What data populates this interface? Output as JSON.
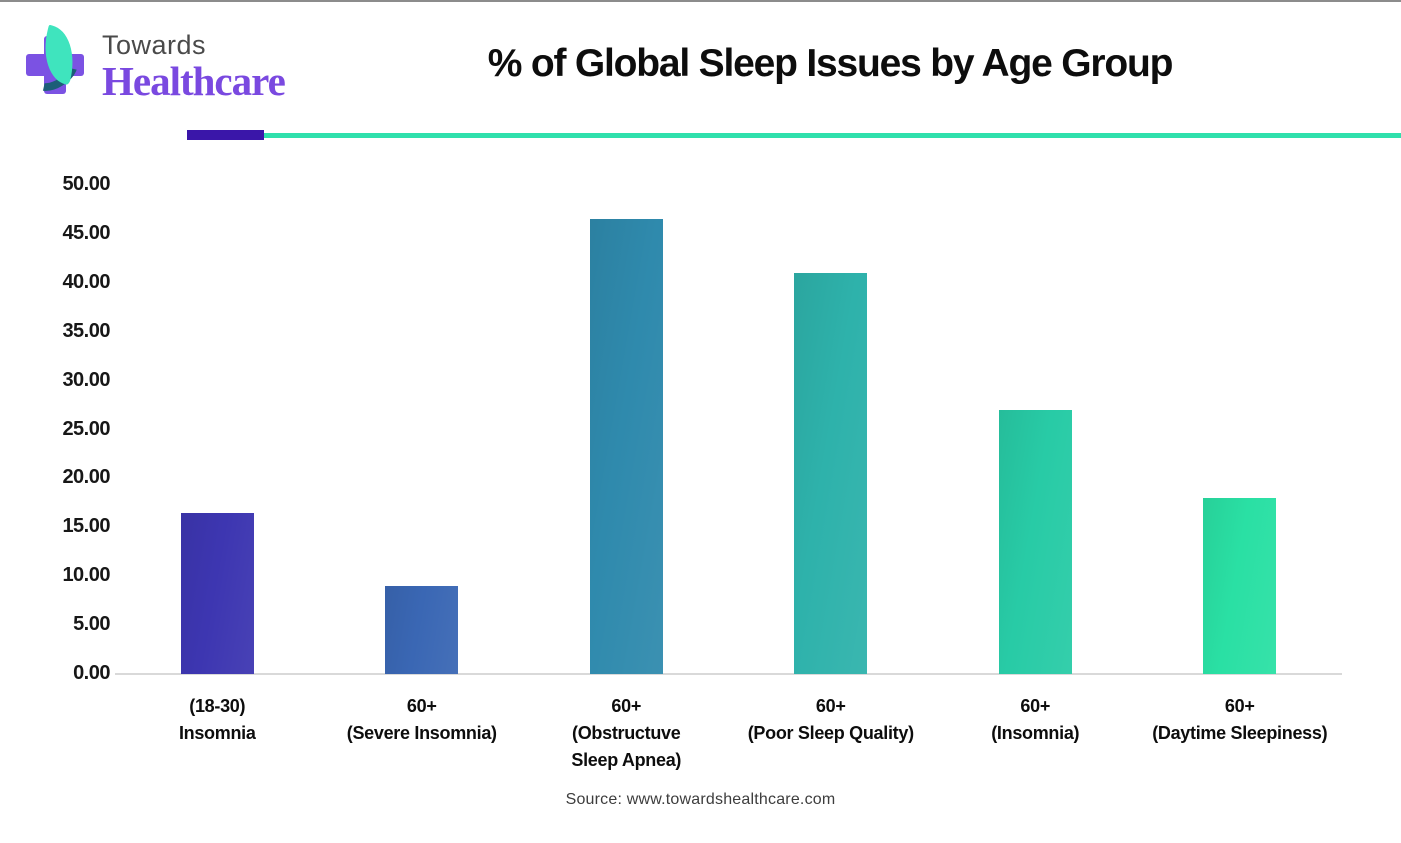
{
  "page": {
    "background": "#ffffff",
    "top_border_color": "#8c8c8c"
  },
  "header": {
    "logo": {
      "line1": "Towards",
      "line2": "Healthcare",
      "line1_color": "#4a4a4a",
      "line2_color": "#7a49e0",
      "cross_color": "#7b52e3",
      "leaf_color": "#3fe4be",
      "swoosh_color": "#1c5e78"
    }
  },
  "divider": {
    "accent_color": "#3a16a9",
    "line_color": "#2fe0ac"
  },
  "chart_data": {
    "type": "bar",
    "title": "% of Global Sleep Issues by Age Group",
    "categories": [
      "(18-30)\nInsomnia",
      "60+\n(Severe Insomnia)",
      "60+\n(Obstructuve\nSleep Apnea)",
      "60+\n(Poor Sleep Quality)",
      "60+\n(Insomnia)",
      "60+\n(Daytime Sleepiness)"
    ],
    "values": [
      16.5,
      9.0,
      46.5,
      41.0,
      27.0,
      18.0
    ],
    "bar_colors": [
      "#3d36b1",
      "#3a67b4",
      "#2f8aad",
      "#2eb2ab",
      "#28cba6",
      "#2ae0a4"
    ],
    "xlabel": "",
    "ylabel": "",
    "ylim": [
      0,
      50
    ],
    "ytick_labels": [
      "0.00",
      "5.00",
      "10.00",
      "15.00",
      "20.00",
      "25.00",
      "30.00",
      "35.00",
      "40.00",
      "45.00",
      "50.00"
    ],
    "grid": false,
    "legend": false,
    "axis_line_color": "#d9d9d9"
  },
  "footer": {
    "source": "Source: www.towardshealthcare.com"
  }
}
